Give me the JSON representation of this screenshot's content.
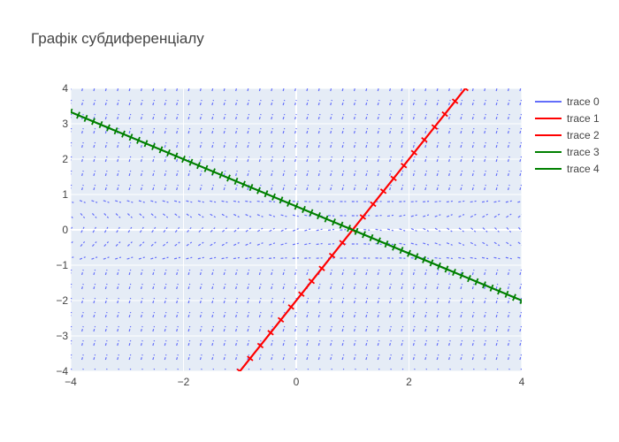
{
  "chart_data": {
    "type": "line",
    "title": "Графік субдиференціалу",
    "xlabel": "",
    "ylabel": "",
    "xlim": [
      -4,
      4
    ],
    "ylim": [
      -4,
      4
    ],
    "xticks": [
      -4,
      -2,
      0,
      2,
      4
    ],
    "yticks": [
      -4,
      -3,
      -2,
      -1,
      0,
      1,
      2,
      3,
      4
    ],
    "grid": true,
    "legend_position": "top-right",
    "background_color": "#e5ecf6",
    "series": [
      {
        "name": "trace 0",
        "color": "#636efa",
        "style": "direction-field",
        "description_values": {
          "x_step": 0.21,
          "y_step": 0.4
        }
      },
      {
        "name": "trace 1",
        "color": "#ff0000",
        "style": "line-with-ticks",
        "x": [
          -1,
          3
        ],
        "y": [
          -4,
          4
        ]
      },
      {
        "name": "trace 2",
        "color": "#ff0000",
        "style": "line",
        "x": [
          -1,
          3
        ],
        "y": [
          -4,
          4
        ]
      },
      {
        "name": "trace 3",
        "color": "#008000",
        "style": "line-with-ticks",
        "x": [
          -4,
          4
        ],
        "y": [
          3.33,
          -2.0
        ]
      },
      {
        "name": "trace 4",
        "color": "#008000",
        "style": "line",
        "x": [
          -4,
          4
        ],
        "y": [
          3.33,
          -2.0
        ]
      }
    ]
  }
}
